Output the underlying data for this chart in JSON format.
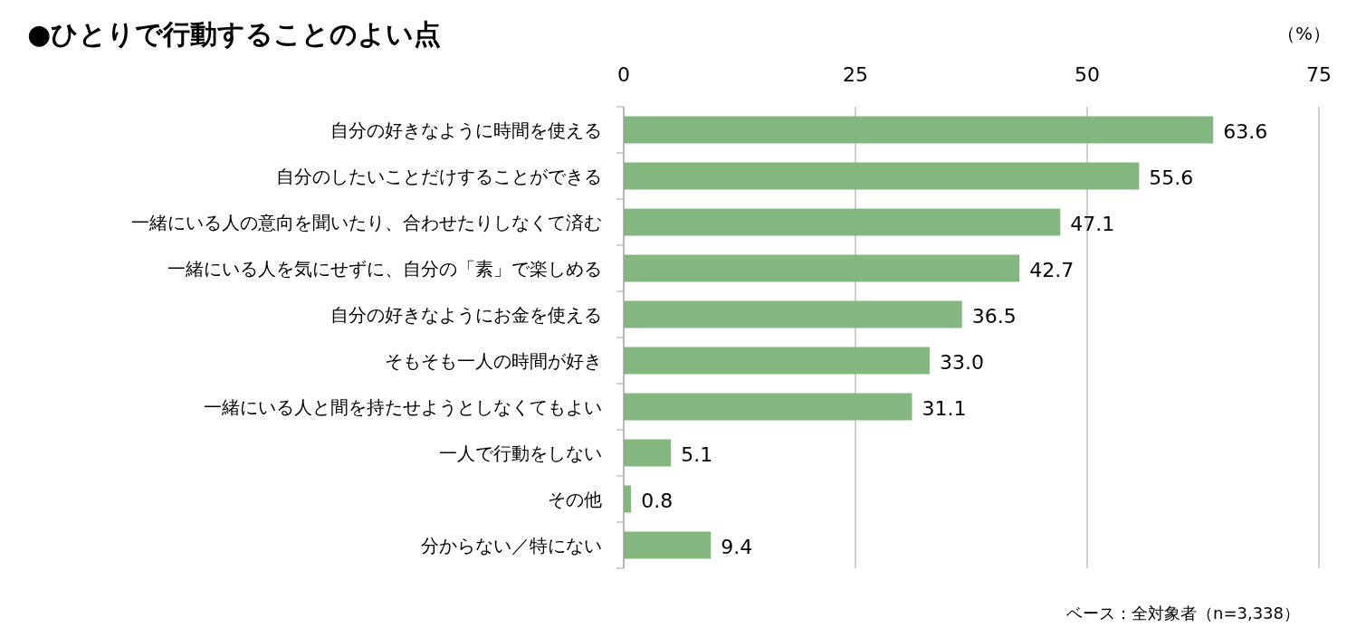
{
  "chart_data": {
    "type": "bar",
    "orientation": "horizontal",
    "title": "●ひとりで行動することのよい点",
    "xlabel": "（%）",
    "categories": [
      "自分の好きなように時間を使える",
      "自分のしたいことだけすることができる",
      "一緒にいる人の意向を聞いたり、合わせたりしなくて済む",
      "一緒にいる人を気にせずに、自分の「素」で楽しめる",
      "自分の好きなようにお金を使える",
      "そもそも一人の時間が好き",
      "一緒にいる人と間を持たせようとしなくてもよい",
      "一人で行動をしない",
      "その他",
      "分からない／特にない"
    ],
    "values": [
      63.6,
      55.6,
      47.1,
      42.7,
      36.5,
      33.0,
      31.1,
      5.1,
      0.8,
      9.4
    ],
    "value_labels": [
      "63.6",
      "55.6",
      "47.1",
      "42.7",
      "36.5",
      "33.0",
      "31.1",
      "5.1",
      "0.8",
      "9.4"
    ],
    "color": "#84b77f",
    "xlim": [
      0,
      75
    ],
    "xticks": [
      0,
      25,
      50,
      75
    ],
    "grid": "x",
    "annotations": [
      "ベース：全対象者（n=3,338）"
    ]
  }
}
